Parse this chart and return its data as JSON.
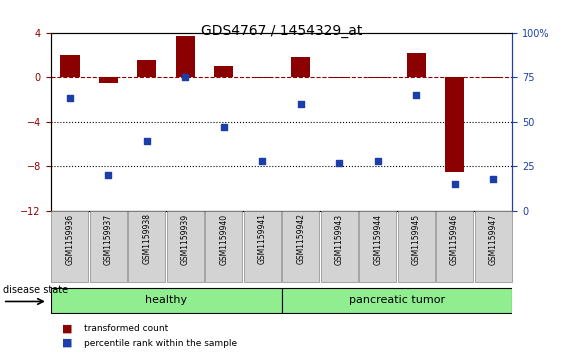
{
  "title": "GDS4767 / 1454329_at",
  "samples": [
    "GSM1159936",
    "GSM1159937",
    "GSM1159938",
    "GSM1159939",
    "GSM1159940",
    "GSM1159941",
    "GSM1159942",
    "GSM1159943",
    "GSM1159944",
    "GSM1159945",
    "GSM1159946",
    "GSM1159947"
  ],
  "transformed_count": [
    2.0,
    -0.5,
    1.5,
    3.7,
    1.0,
    -0.1,
    1.8,
    -0.1,
    -0.1,
    2.2,
    -8.5,
    -0.1
  ],
  "percentile_rank": [
    63,
    20,
    39,
    75,
    47,
    28,
    60,
    27,
    28,
    65,
    15,
    18
  ],
  "group_labels": [
    "healthy",
    "pancreatic tumor"
  ],
  "bar_color": "#8B0000",
  "dot_color": "#1C3EAA",
  "ylim_left": [
    -12,
    4
  ],
  "ylim_right": [
    0,
    100
  ],
  "yticks_left": [
    4,
    0,
    -4,
    -8,
    -12
  ],
  "yticks_right": [
    100,
    75,
    50,
    25,
    0
  ],
  "ytick_right_labels": [
    "100%",
    "75",
    "50",
    "25",
    "0"
  ],
  "legend_items": [
    "transformed count",
    "percentile rank within the sample"
  ],
  "disease_state_label": "disease state",
  "bar_width": 0.5,
  "background_color": "#ffffff",
  "left_axis_color": "#8B0000",
  "right_axis_color": "#1C3EAA",
  "title_fontsize": 10,
  "tick_fontsize": 7,
  "label_fontsize": 7,
  "group_fontsize": 8
}
